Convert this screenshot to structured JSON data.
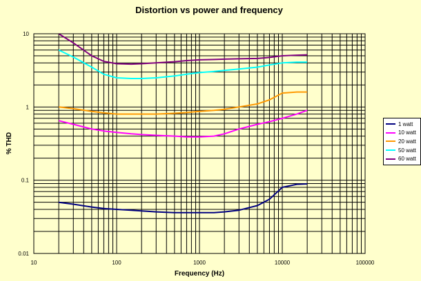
{
  "chart_data": {
    "type": "line",
    "title": "Distortion vs power and frequency",
    "xlabel": "Frequency (Hz)",
    "ylabel": "% THD",
    "xscale": "log",
    "yscale": "log",
    "xlim": [
      10,
      100000
    ],
    "ylim": [
      0.01,
      10
    ],
    "x_tick_labels": [
      "10",
      "100",
      "1000",
      "10000",
      "100000"
    ],
    "y_tick_labels": [
      "10",
      "1",
      "0.1",
      "0.01"
    ],
    "legend_position": "right",
    "x": [
      20,
      30,
      50,
      70,
      100,
      150,
      200,
      300,
      500,
      700,
      1000,
      1500,
      2000,
      3000,
      5000,
      7000,
      10000,
      15000,
      20000
    ],
    "series": [
      {
        "name": "1 watt",
        "color": "#000080",
        "values": [
          0.05,
          0.047,
          0.043,
          0.041,
          0.04,
          0.039,
          0.038,
          0.037,
          0.036,
          0.036,
          0.036,
          0.036,
          0.037,
          0.039,
          0.045,
          0.055,
          0.08,
          0.088,
          0.089
        ]
      },
      {
        "name": "10 watt",
        "color": "#ff00ff",
        "values": [
          0.65,
          0.58,
          0.5,
          0.47,
          0.45,
          0.43,
          0.42,
          0.41,
          0.4,
          0.39,
          0.39,
          0.4,
          0.43,
          0.5,
          0.58,
          0.63,
          0.7,
          0.8,
          0.9
        ]
      },
      {
        "name": "20 watt",
        "color": "#ff9900",
        "values": [
          1.0,
          0.95,
          0.87,
          0.83,
          0.8,
          0.8,
          0.8,
          0.8,
          0.82,
          0.84,
          0.87,
          0.9,
          0.93,
          1.0,
          1.1,
          1.25,
          1.55,
          1.6,
          1.6
        ]
      },
      {
        "name": "50 watt",
        "color": "#00ffff",
        "values": [
          6.0,
          4.8,
          3.5,
          2.8,
          2.5,
          2.45,
          2.45,
          2.5,
          2.65,
          2.8,
          2.95,
          3.05,
          3.15,
          3.3,
          3.5,
          3.75,
          4.0,
          4.1,
          4.1
        ]
      },
      {
        "name": "60 watt",
        "color": "#800080",
        "values": [
          10.0,
          7.5,
          5.0,
          4.2,
          3.9,
          3.85,
          3.9,
          4.0,
          4.15,
          4.3,
          4.4,
          4.45,
          4.5,
          4.55,
          4.6,
          4.75,
          5.0,
          5.1,
          5.15
        ]
      }
    ]
  }
}
